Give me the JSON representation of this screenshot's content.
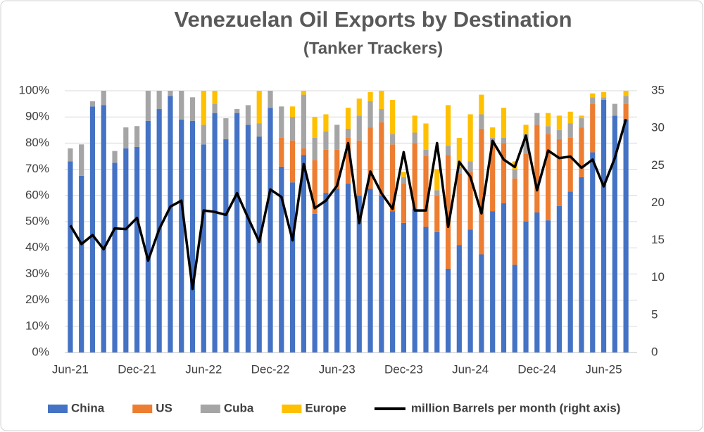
{
  "chart_data": {
    "type": "bar",
    "stacked": true,
    "title": "Venezuelan Oil Exports by Destination",
    "subtitle": "(Tanker Trackers)",
    "categories": [
      "Jun-21",
      null,
      null,
      null,
      null,
      null,
      "Dec-21",
      null,
      null,
      null,
      null,
      null,
      "Jun-22",
      null,
      null,
      null,
      null,
      null,
      "Dec-22",
      null,
      null,
      null,
      null,
      null,
      "Jun-23",
      null,
      null,
      null,
      null,
      null,
      "Dec-23",
      null,
      null,
      null,
      null,
      null,
      "Jun-24",
      null,
      null,
      null,
      null,
      null,
      "Dec-24",
      null,
      null,
      null,
      null,
      null,
      "Jun-25",
      null,
      null
    ],
    "series": [
      {
        "name": "China",
        "color": "#4472c4",
        "values": [
          73,
          67.5,
          94,
          94.5,
          72.5,
          78,
          78.5,
          88.5,
          93,
          98,
          89,
          88.5,
          79.5,
          91.5,
          81.5,
          91.5,
          87,
          82.5,
          93.5,
          71,
          65,
          75.5,
          53,
          61,
          62.5,
          64.5,
          60,
          62.5,
          60,
          54,
          49.5,
          55,
          48,
          46,
          32,
          41,
          47,
          37.5,
          54,
          57,
          33.5,
          50,
          53.5,
          50.5,
          56,
          61.5,
          67,
          76.5,
          96.5,
          90.5,
          89
        ]
      },
      {
        "name": "US",
        "color": "#ed7d31",
        "values": [
          0,
          0,
          0,
          0,
          0,
          0,
          0,
          0,
          0,
          0,
          0,
          0,
          0,
          0,
          0,
          0,
          0,
          0,
          0,
          11,
          16,
          2.5,
          20.5,
          16.5,
          15,
          17.5,
          21,
          23.5,
          28,
          25.5,
          15,
          25,
          27,
          14,
          43.5,
          27.5,
          22,
          48,
          25.5,
          23,
          33,
          26,
          33.5,
          33,
          25.5,
          20.5,
          19,
          18.5,
          0,
          0,
          6
        ]
      },
      {
        "name": "Cuba",
        "color": "#a5a5a5",
        "values": [
          5,
          12,
          2,
          5.5,
          4.5,
          8,
          8,
          11.5,
          7,
          2,
          11,
          9,
          7.5,
          3.5,
          8,
          1.5,
          7.5,
          5,
          6.5,
          12,
          9,
          20.5,
          8.5,
          7,
          9.5,
          3.5,
          9.5,
          10,
          5,
          4,
          2.5,
          4,
          2.5,
          2,
          3.5,
          2.5,
          4,
          5.5,
          2.5,
          2,
          3.5,
          7.5,
          4.5,
          3,
          3.5,
          5.5,
          3.5,
          2.5,
          1,
          4.5,
          3
        ]
      },
      {
        "name": "Europe",
        "color": "#ffc000",
        "values": [
          0,
          0,
          0,
          0,
          0,
          0,
          0,
          0,
          0,
          0,
          0,
          0,
          13,
          5,
          0,
          0,
          0,
          12.5,
          0,
          0,
          4,
          1.5,
          8,
          6.5,
          0,
          8,
          6.5,
          3.5,
          7,
          13,
          2,
          6.5,
          10,
          8,
          15.5,
          11,
          18,
          7.5,
          4,
          11.5,
          3,
          3.5,
          0,
          5,
          5.5,
          4.5,
          1,
          1.5,
          2,
          0,
          2
        ]
      },
      {
        "name": "million Barrels per month (right axis)",
        "type": "line",
        "axis": "y2",
        "color": "#000000",
        "values": [
          17,
          14.5,
          15.7,
          13.8,
          16.6,
          16.5,
          18,
          12.3,
          16.5,
          19.5,
          20.3,
          8.5,
          19,
          18.8,
          18.4,
          21.3,
          18,
          14.8,
          21.8,
          20.8,
          15,
          25.2,
          19.3,
          20.3,
          22.3,
          28,
          17.3,
          24.2,
          21.3,
          19.2,
          26.8,
          19,
          19,
          28,
          16.8,
          25.5,
          23.5,
          18.6,
          28.3,
          25.8,
          24.8,
          29,
          21.7,
          27,
          26,
          26.2,
          24.7,
          25.8,
          22.2,
          26,
          31.2
        ]
      }
    ],
    "ylim": [
      0,
      100
    ],
    "yticks": [
      {
        "value": 0,
        "label": "0%"
      },
      {
        "value": 10,
        "label": "10%"
      },
      {
        "value": 20,
        "label": "20%"
      },
      {
        "value": 30,
        "label": "30%"
      },
      {
        "value": 40,
        "label": "40%"
      },
      {
        "value": 50,
        "label": "50%"
      },
      {
        "value": 60,
        "label": "60%"
      },
      {
        "value": 70,
        "label": "70%"
      },
      {
        "value": 80,
        "label": "80%"
      },
      {
        "value": 90,
        "label": "90%"
      },
      {
        "value": 100,
        "label": "100%"
      }
    ],
    "y2lim": [
      0,
      35
    ],
    "y2ticks": [
      0,
      5,
      10,
      15,
      20,
      25,
      30,
      35
    ],
    "grid": true,
    "legend": "bottom"
  }
}
